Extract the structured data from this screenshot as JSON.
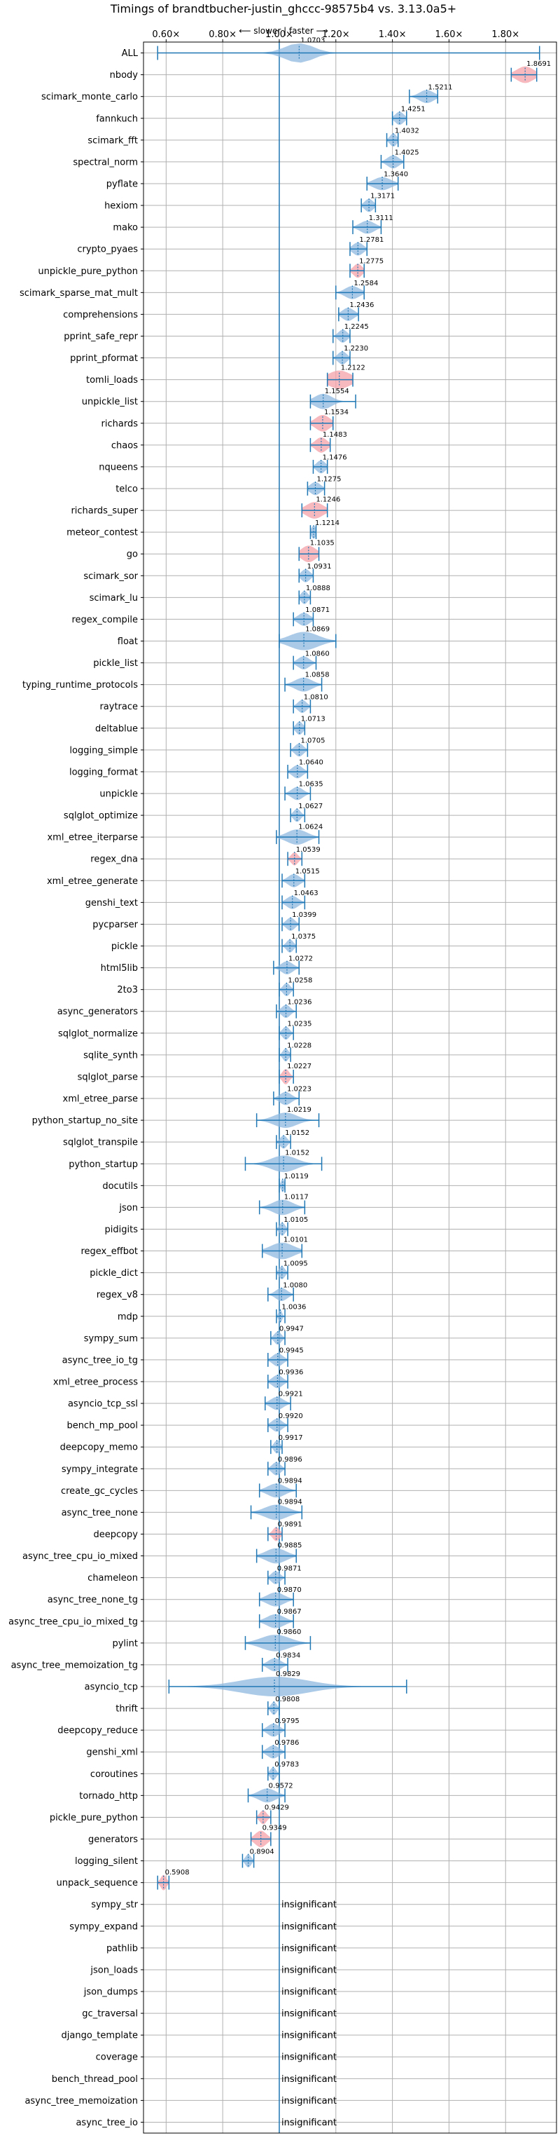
{
  "chart_data": {
    "type": "violin",
    "title": "Timings of brandtbucher-justin_ghccc-98575b4 vs. 3.13.0a5+",
    "direction_note": "⟵ slower | faster ⟶",
    "x_ticks": [
      0.6,
      0.8,
      1.0,
      1.2,
      1.4,
      1.6,
      1.8
    ],
    "x_tick_labels": [
      "0.60×",
      "0.80×",
      "1.00×",
      "1.20×",
      "1.40×",
      "1.60×",
      "1.80×"
    ],
    "xlim": [
      0.52,
      1.98
    ],
    "grid": true,
    "insignificant_text": "insignificant",
    "colors": {
      "normal": "#8fb8e0",
      "highlight": "#f4a0a8",
      "line": "#1f77b4",
      "grid": "#b0b0b0"
    },
    "benchmarks": [
      {
        "name": "ALL",
        "value": 1.0703,
        "label": "1.0703",
        "lo": 0.57,
        "hi": 1.92,
        "spread": 0.05,
        "height": 0.45
      },
      {
        "name": "nbody",
        "value": 1.8691,
        "label": "1.8691",
        "lo": 1.82,
        "hi": 1.91,
        "spread": 0.03,
        "height": 0.38,
        "highlight": true
      },
      {
        "name": "scimark_monte_carlo",
        "value": 1.5211,
        "label": "1.5211",
        "lo": 1.46,
        "hi": 1.56,
        "spread": 0.025,
        "height": 0.3
      },
      {
        "name": "fannkuch",
        "value": 1.4251,
        "label": "1.4251",
        "lo": 1.4,
        "hi": 1.45,
        "spread": 0.015,
        "height": 0.3
      },
      {
        "name": "scimark_fft",
        "value": 1.4032,
        "label": "1.4032",
        "lo": 1.38,
        "hi": 1.42,
        "spread": 0.012,
        "height": 0.3
      },
      {
        "name": "spectral_norm",
        "value": 1.4025,
        "label": "1.4025",
        "lo": 1.36,
        "hi": 1.44,
        "spread": 0.02,
        "height": 0.3
      },
      {
        "name": "pyflate",
        "value": 1.364,
        "label": "1.3640",
        "lo": 1.31,
        "hi": 1.42,
        "spread": 0.03,
        "height": 0.3
      },
      {
        "name": "hexiom",
        "value": 1.3171,
        "label": "1.3171",
        "lo": 1.29,
        "hi": 1.34,
        "spread": 0.015,
        "height": 0.3
      },
      {
        "name": "mako",
        "value": 1.3111,
        "label": "1.3111",
        "lo": 1.26,
        "hi": 1.36,
        "spread": 0.025,
        "height": 0.3
      },
      {
        "name": "crypto_pyaes",
        "value": 1.2781,
        "label": "1.2781",
        "lo": 1.25,
        "hi": 1.31,
        "spread": 0.018,
        "height": 0.3
      },
      {
        "name": "unpickle_pure_python",
        "value": 1.2775,
        "label": "1.2775",
        "lo": 1.25,
        "hi": 1.3,
        "spread": 0.015,
        "height": 0.32,
        "highlight": true
      },
      {
        "name": "scimark_sparse_mat_mult",
        "value": 1.2584,
        "label": "1.2584",
        "lo": 1.2,
        "hi": 1.3,
        "spread": 0.025,
        "height": 0.3
      },
      {
        "name": "comprehensions",
        "value": 1.2436,
        "label": "1.2436",
        "lo": 1.21,
        "hi": 1.28,
        "spread": 0.02,
        "height": 0.3
      },
      {
        "name": "pprint_safe_repr",
        "value": 1.2245,
        "label": "1.2245",
        "lo": 1.19,
        "hi": 1.25,
        "spread": 0.015,
        "height": 0.3
      },
      {
        "name": "pprint_pformat",
        "value": 1.223,
        "label": "1.2230",
        "lo": 1.19,
        "hi": 1.25,
        "spread": 0.015,
        "height": 0.3
      },
      {
        "name": "tomli_loads",
        "value": 1.2122,
        "label": "1.2122",
        "lo": 1.17,
        "hi": 1.26,
        "spread": 0.04,
        "height": 0.42,
        "highlight": true
      },
      {
        "name": "unpickle_list",
        "value": 1.1554,
        "label": "1.1554",
        "lo": 1.11,
        "hi": 1.27,
        "spread": 0.03,
        "height": 0.35
      },
      {
        "name": "richards",
        "value": 1.1534,
        "label": "1.1534",
        "lo": 1.11,
        "hi": 1.19,
        "spread": 0.025,
        "height": 0.38,
        "highlight": true
      },
      {
        "name": "chaos",
        "value": 1.1483,
        "label": "1.1483",
        "lo": 1.11,
        "hi": 1.18,
        "spread": 0.02,
        "height": 0.35,
        "highlight": true
      },
      {
        "name": "nqueens",
        "value": 1.1476,
        "label": "1.1476",
        "lo": 1.12,
        "hi": 1.17,
        "spread": 0.015,
        "height": 0.3
      },
      {
        "name": "telco",
        "value": 1.1275,
        "label": "1.1275",
        "lo": 1.1,
        "hi": 1.16,
        "spread": 0.018,
        "height": 0.3
      },
      {
        "name": "richards_super",
        "value": 1.1246,
        "label": "1.1246",
        "lo": 1.08,
        "hi": 1.17,
        "spread": 0.03,
        "height": 0.38,
        "highlight": true
      },
      {
        "name": "meteor_contest",
        "value": 1.1214,
        "label": "1.1214",
        "lo": 1.11,
        "hi": 1.13,
        "spread": 0.008,
        "height": 0.3
      },
      {
        "name": "go",
        "value": 1.1035,
        "label": "1.1035",
        "lo": 1.07,
        "hi": 1.14,
        "spread": 0.025,
        "height": 0.38,
        "highlight": true
      },
      {
        "name": "scimark_sor",
        "value": 1.0931,
        "label": "1.0931",
        "lo": 1.07,
        "hi": 1.12,
        "spread": 0.015,
        "height": 0.3
      },
      {
        "name": "scimark_lu",
        "value": 1.0888,
        "label": "1.0888",
        "lo": 1.07,
        "hi": 1.11,
        "spread": 0.012,
        "height": 0.3
      },
      {
        "name": "regex_compile",
        "value": 1.0871,
        "label": "1.0871",
        "lo": 1.05,
        "hi": 1.12,
        "spread": 0.02,
        "height": 0.3
      },
      {
        "name": "float",
        "value": 1.0869,
        "label": "1.0869",
        "lo": 1.0,
        "hi": 1.2,
        "spread": 0.05,
        "height": 0.42
      },
      {
        "name": "pickle_list",
        "value": 1.086,
        "label": "1.0860",
        "lo": 1.05,
        "hi": 1.13,
        "spread": 0.02,
        "height": 0.3
      },
      {
        "name": "typing_runtime_protocols",
        "value": 1.0858,
        "label": "1.0858",
        "lo": 1.02,
        "hi": 1.15,
        "spread": 0.03,
        "height": 0.32
      },
      {
        "name": "raytrace",
        "value": 1.081,
        "label": "1.0810",
        "lo": 1.05,
        "hi": 1.11,
        "spread": 0.015,
        "height": 0.3
      },
      {
        "name": "deltablue",
        "value": 1.0713,
        "label": "1.0713",
        "lo": 1.05,
        "hi": 1.09,
        "spread": 0.012,
        "height": 0.3
      },
      {
        "name": "logging_simple",
        "value": 1.0705,
        "label": "1.0705",
        "lo": 1.04,
        "hi": 1.1,
        "spread": 0.015,
        "height": 0.3
      },
      {
        "name": "logging_format",
        "value": 1.064,
        "label": "1.0640",
        "lo": 1.03,
        "hi": 1.1,
        "spread": 0.018,
        "height": 0.3
      },
      {
        "name": "unpickle",
        "value": 1.0635,
        "label": "1.0635",
        "lo": 1.02,
        "hi": 1.11,
        "spread": 0.02,
        "height": 0.3
      },
      {
        "name": "sqlglot_optimize",
        "value": 1.0627,
        "label": "1.0627",
        "lo": 1.04,
        "hi": 1.09,
        "spread": 0.012,
        "height": 0.3
      },
      {
        "name": "xml_etree_iterparse",
        "value": 1.0624,
        "label": "1.0624",
        "lo": 0.99,
        "hi": 1.14,
        "spread": 0.035,
        "height": 0.35
      },
      {
        "name": "regex_dna",
        "value": 1.0539,
        "label": "1.0539",
        "lo": 1.03,
        "hi": 1.08,
        "spread": 0.012,
        "height": 0.3,
        "highlight": true
      },
      {
        "name": "xml_etree_generate",
        "value": 1.0515,
        "label": "1.0515",
        "lo": 1.01,
        "hi": 1.09,
        "spread": 0.02,
        "height": 0.3
      },
      {
        "name": "genshi_text",
        "value": 1.0463,
        "label": "1.0463",
        "lo": 1.01,
        "hi": 1.09,
        "spread": 0.02,
        "height": 0.3
      },
      {
        "name": "pycparser",
        "value": 1.0399,
        "label": "1.0399",
        "lo": 1.01,
        "hi": 1.07,
        "spread": 0.015,
        "height": 0.3
      },
      {
        "name": "pickle",
        "value": 1.0375,
        "label": "1.0375",
        "lo": 1.01,
        "hi": 1.06,
        "spread": 0.012,
        "height": 0.3
      },
      {
        "name": "html5lib",
        "value": 1.0272,
        "label": "1.0272",
        "lo": 0.98,
        "hi": 1.07,
        "spread": 0.02,
        "height": 0.3
      },
      {
        "name": "2to3",
        "value": 1.0258,
        "label": "1.0258",
        "lo": 1.0,
        "hi": 1.05,
        "spread": 0.012,
        "height": 0.3
      },
      {
        "name": "async_generators",
        "value": 1.0236,
        "label": "1.0236",
        "lo": 0.99,
        "hi": 1.06,
        "spread": 0.015,
        "height": 0.3
      },
      {
        "name": "sqlglot_normalize",
        "value": 1.0235,
        "label": "1.0235",
        "lo": 1.0,
        "hi": 1.05,
        "spread": 0.012,
        "height": 0.3
      },
      {
        "name": "sqlite_synth",
        "value": 1.0228,
        "label": "1.0228",
        "lo": 1.0,
        "hi": 1.04,
        "spread": 0.01,
        "height": 0.3
      },
      {
        "name": "sqlglot_parse",
        "value": 1.0227,
        "label": "1.0227",
        "lo": 1.0,
        "hi": 1.05,
        "spread": 0.012,
        "height": 0.35,
        "highlight": true
      },
      {
        "name": "xml_etree_parse",
        "value": 1.0223,
        "label": "1.0223",
        "lo": 0.98,
        "hi": 1.07,
        "spread": 0.02,
        "height": 0.3
      },
      {
        "name": "python_startup_no_site",
        "value": 1.0219,
        "label": "1.0219",
        "lo": 0.92,
        "hi": 1.14,
        "spread": 0.04,
        "height": 0.35
      },
      {
        "name": "sqlglot_transpile",
        "value": 1.0152,
        "label": "1.0152",
        "lo": 0.99,
        "hi": 1.04,
        "spread": 0.012,
        "height": 0.3
      },
      {
        "name": "python_startup",
        "value": 1.0152,
        "label": "1.0152",
        "lo": 0.88,
        "hi": 1.15,
        "spread": 0.045,
        "height": 0.38
      },
      {
        "name": "docutils",
        "value": 1.0119,
        "label": "1.0119",
        "lo": 1.0,
        "hi": 1.02,
        "spread": 0.006,
        "height": 0.3
      },
      {
        "name": "json",
        "value": 1.0117,
        "label": "1.0117",
        "lo": 0.93,
        "hi": 1.09,
        "spread": 0.035,
        "height": 0.35
      },
      {
        "name": "pidigits",
        "value": 1.0105,
        "label": "1.0105",
        "lo": 0.99,
        "hi": 1.03,
        "spread": 0.01,
        "height": 0.3
      },
      {
        "name": "regex_effbot",
        "value": 1.0101,
        "label": "1.0101",
        "lo": 0.94,
        "hi": 1.08,
        "spread": 0.04,
        "height": 0.38
      },
      {
        "name": "pickle_dict",
        "value": 1.0095,
        "label": "1.0095",
        "lo": 0.99,
        "hi": 1.03,
        "spread": 0.01,
        "height": 0.3
      },
      {
        "name": "regex_v8",
        "value": 1.008,
        "label": "1.0080",
        "lo": 0.96,
        "hi": 1.05,
        "spread": 0.02,
        "height": 0.3
      },
      {
        "name": "mdp",
        "value": 1.0036,
        "label": "1.0036",
        "lo": 0.99,
        "hi": 1.02,
        "spread": 0.006,
        "height": 0.3
      },
      {
        "name": "sympy_sum",
        "value": 0.9947,
        "label": "0.9947",
        "lo": 0.97,
        "hi": 1.02,
        "spread": 0.012,
        "height": 0.3
      },
      {
        "name": "async_tree_io_tg",
        "value": 0.9945,
        "label": "0.9945",
        "lo": 0.96,
        "hi": 1.03,
        "spread": 0.018,
        "height": 0.3
      },
      {
        "name": "xml_etree_process",
        "value": 0.9936,
        "label": "0.9936",
        "lo": 0.96,
        "hi": 1.03,
        "spread": 0.018,
        "height": 0.3
      },
      {
        "name": "asyncio_tcp_ssl",
        "value": 0.9921,
        "label": "0.9921",
        "lo": 0.95,
        "hi": 1.04,
        "spread": 0.022,
        "height": 0.3
      },
      {
        "name": "bench_mp_pool",
        "value": 0.992,
        "label": "0.9920",
        "lo": 0.96,
        "hi": 1.03,
        "spread": 0.018,
        "height": 0.3
      },
      {
        "name": "deepcopy_memo",
        "value": 0.9917,
        "label": "0.9917",
        "lo": 0.97,
        "hi": 1.01,
        "spread": 0.01,
        "height": 0.3
      },
      {
        "name": "sympy_integrate",
        "value": 0.9896,
        "label": "0.9896",
        "lo": 0.96,
        "hi": 1.02,
        "spread": 0.015,
        "height": 0.3
      },
      {
        "name": "create_gc_cycles",
        "value": 0.9894,
        "label": "0.9894",
        "lo": 0.93,
        "hi": 1.06,
        "spread": 0.03,
        "height": 0.32
      },
      {
        "name": "async_tree_none",
        "value": 0.9894,
        "label": "0.9894",
        "lo": 0.9,
        "hi": 1.08,
        "spread": 0.04,
        "height": 0.35
      },
      {
        "name": "deepcopy",
        "value": 0.9891,
        "label": "0.9891",
        "lo": 0.96,
        "hi": 1.01,
        "spread": 0.012,
        "height": 0.32,
        "highlight": true
      },
      {
        "name": "async_tree_cpu_io_mixed",
        "value": 0.9885,
        "label": "0.9885",
        "lo": 0.92,
        "hi": 1.06,
        "spread": 0.035,
        "height": 0.35
      },
      {
        "name": "chameleon",
        "value": 0.9871,
        "label": "0.9871",
        "lo": 0.96,
        "hi": 1.02,
        "spread": 0.015,
        "height": 0.3
      },
      {
        "name": "async_tree_none_tg",
        "value": 0.987,
        "label": "0.9870",
        "lo": 0.93,
        "hi": 1.05,
        "spread": 0.03,
        "height": 0.32
      },
      {
        "name": "async_tree_cpu_io_mixed_tg",
        "value": 0.9867,
        "label": "0.9867",
        "lo": 0.93,
        "hi": 1.05,
        "spread": 0.03,
        "height": 0.32
      },
      {
        "name": "pylint",
        "value": 0.986,
        "label": "0.9860",
        "lo": 0.88,
        "hi": 1.11,
        "spread": 0.05,
        "height": 0.38
      },
      {
        "name": "async_tree_memoization_tg",
        "value": 0.9834,
        "label": "0.9834",
        "lo": 0.94,
        "hi": 1.03,
        "spread": 0.022,
        "height": 0.3
      },
      {
        "name": "asyncio_tcp",
        "value": 0.9829,
        "label": "0.9829",
        "lo": 0.61,
        "hi": 1.45,
        "spread": 0.12,
        "height": 0.45
      },
      {
        "name": "thrift",
        "value": 0.9808,
        "label": "0.9808",
        "lo": 0.96,
        "hi": 1.0,
        "spread": 0.01,
        "height": 0.3
      },
      {
        "name": "deepcopy_reduce",
        "value": 0.9795,
        "label": "0.9795",
        "lo": 0.94,
        "hi": 1.02,
        "spread": 0.02,
        "height": 0.3
      },
      {
        "name": "genshi_xml",
        "value": 0.9786,
        "label": "0.9786",
        "lo": 0.94,
        "hi": 1.02,
        "spread": 0.02,
        "height": 0.3
      },
      {
        "name": "coroutines",
        "value": 0.9783,
        "label": "0.9783",
        "lo": 0.96,
        "hi": 1.0,
        "spread": 0.01,
        "height": 0.3
      },
      {
        "name": "tornado_http",
        "value": 0.9572,
        "label": "0.9572",
        "lo": 0.89,
        "hi": 1.02,
        "spread": 0.03,
        "height": 0.32
      },
      {
        "name": "pickle_pure_python",
        "value": 0.9429,
        "label": "0.9429",
        "lo": 0.92,
        "hi": 0.97,
        "spread": 0.012,
        "height": 0.32,
        "highlight": true
      },
      {
        "name": "generators",
        "value": 0.9349,
        "label": "0.9349",
        "lo": 0.9,
        "hi": 0.97,
        "spread": 0.02,
        "height": 0.38,
        "highlight": true
      },
      {
        "name": "logging_silent",
        "value": 0.8904,
        "label": "0.8904",
        "lo": 0.87,
        "hi": 0.91,
        "spread": 0.01,
        "height": 0.3
      },
      {
        "name": "unpack_sequence",
        "value": 0.5908,
        "label": "0.5908",
        "lo": 0.57,
        "hi": 0.61,
        "spread": 0.01,
        "height": 0.35,
        "highlight": true
      },
      {
        "name": "sympy_str",
        "insignificant": true
      },
      {
        "name": "sympy_expand",
        "insignificant": true
      },
      {
        "name": "pathlib",
        "insignificant": true
      },
      {
        "name": "json_loads",
        "insignificant": true
      },
      {
        "name": "json_dumps",
        "insignificant": true
      },
      {
        "name": "gc_traversal",
        "insignificant": true
      },
      {
        "name": "django_template",
        "insignificant": true
      },
      {
        "name": "coverage",
        "insignificant": true
      },
      {
        "name": "bench_thread_pool",
        "insignificant": true
      },
      {
        "name": "async_tree_memoization",
        "insignificant": true
      },
      {
        "name": "async_tree_io",
        "insignificant": true
      }
    ]
  }
}
